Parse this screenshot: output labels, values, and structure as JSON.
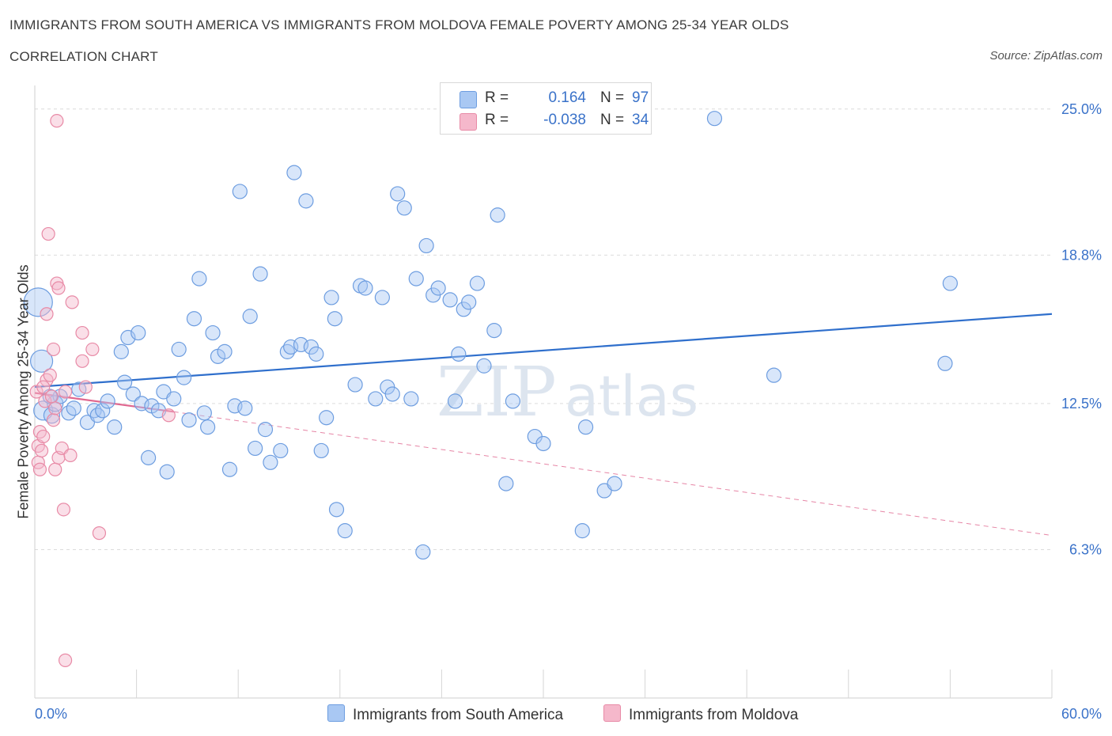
{
  "header": {
    "title": "IMMIGRANTS FROM SOUTH AMERICA VS IMMIGRANTS FROM MOLDOVA FEMALE POVERTY AMONG 25-34 YEAR OLDS",
    "subtitle": "CORRELATION CHART",
    "source": "Source: ZipAtlas.com"
  },
  "legend": {
    "rows": [
      {
        "r_label": "R =",
        "r_value": "0.164",
        "n_label": "N =",
        "n_value": "97",
        "color": "#a9c8f3"
      },
      {
        "r_label": "R =",
        "r_value": "-0.038",
        "n_label": "N =",
        "n_value": "34",
        "color": "#f5b8cb"
      }
    ]
  },
  "bottom_legend": {
    "south_america": "Immigrants from South America",
    "moldova": "Immigrants from Moldova"
  },
  "colors": {
    "blue_fill": "#a9c8f3",
    "blue_stroke": "#6d9de0",
    "blue_line": "#2f6fcc",
    "pink_fill": "#f5b8cb",
    "pink_stroke": "#e88aa6",
    "pink_line": "#e06890",
    "tick_text": "#3a72c9",
    "watermark": "#dde5ef"
  },
  "chart_data": {
    "type": "scatter",
    "title": "IMMIGRANTS FROM SOUTH AMERICA VS IMMIGRANTS FROM MOLDOVA FEMALE POVERTY AMONG 25-34 YEAR OLDS",
    "xlabel": "",
    "ylabel": "Female Poverty Among 25-34 Year Olds",
    "xlim": [
      0,
      60
    ],
    "ylim": [
      0,
      26
    ],
    "x_tick_labels": [
      "0.0%",
      "60.0%"
    ],
    "y_ticks": [
      6.3,
      12.5,
      18.8,
      25.0
    ],
    "y_tick_labels": [
      "6.3%",
      "12.5%",
      "18.8%",
      "25.0%"
    ],
    "grid": true,
    "watermark": "ZIPatlas",
    "series": [
      {
        "name": "Immigrants from South America",
        "color": "#a9c8f3",
        "trend": {
          "x": [
            0,
            60
          ],
          "y": [
            13.2,
            16.3
          ]
        },
        "points": [
          [
            0.2,
            16.8,
            18
          ],
          [
            0.4,
            14.3,
            14
          ],
          [
            0.5,
            12.2,
            12
          ],
          [
            1.0,
            12.0,
            10
          ],
          [
            1.2,
            12.5,
            10
          ],
          [
            1.5,
            12.8,
            9
          ],
          [
            2.0,
            12.1,
            9
          ],
          [
            2.3,
            12.3,
            9
          ],
          [
            2.6,
            13.1,
            9
          ],
          [
            3.1,
            11.7,
            9
          ],
          [
            3.5,
            12.2,
            9
          ],
          [
            3.7,
            12.0,
            9
          ],
          [
            4.0,
            12.2,
            9
          ],
          [
            4.3,
            12.6,
            9
          ],
          [
            4.7,
            11.5,
            9
          ],
          [
            5.1,
            14.7,
            9
          ],
          [
            5.3,
            13.4,
            9
          ],
          [
            5.5,
            15.3,
            9
          ],
          [
            5.8,
            12.9,
            9
          ],
          [
            6.1,
            15.5,
            9
          ],
          [
            6.3,
            12.5,
            9
          ],
          [
            6.7,
            10.2,
            9
          ],
          [
            6.9,
            12.4,
            9
          ],
          [
            7.3,
            12.2,
            9
          ],
          [
            7.6,
            13.0,
            9
          ],
          [
            7.8,
            9.6,
            9
          ],
          [
            8.2,
            12.7,
            9
          ],
          [
            8.5,
            14.8,
            9
          ],
          [
            8.8,
            13.6,
            9
          ],
          [
            9.1,
            11.8,
            9
          ],
          [
            9.4,
            16.1,
            9
          ],
          [
            9.7,
            17.8,
            9
          ],
          [
            10.0,
            12.1,
            9
          ],
          [
            10.2,
            11.5,
            9
          ],
          [
            10.5,
            15.5,
            9
          ],
          [
            10.8,
            14.5,
            9
          ],
          [
            11.2,
            14.7,
            9
          ],
          [
            11.5,
            9.7,
            9
          ],
          [
            11.8,
            12.4,
            9
          ],
          [
            12.1,
            21.5,
            9
          ],
          [
            12.4,
            12.3,
            9
          ],
          [
            12.7,
            16.2,
            9
          ],
          [
            13.0,
            10.6,
            9
          ],
          [
            13.3,
            18.0,
            9
          ],
          [
            13.6,
            11.4,
            9
          ],
          [
            13.9,
            10.0,
            9
          ],
          [
            14.5,
            10.5,
            9
          ],
          [
            14.9,
            14.7,
            9
          ],
          [
            15.1,
            14.9,
            9
          ],
          [
            15.3,
            22.3,
            9
          ],
          [
            15.7,
            15.0,
            9
          ],
          [
            16.0,
            21.1,
            9
          ],
          [
            16.3,
            14.9,
            9
          ],
          [
            16.6,
            14.6,
            9
          ],
          [
            16.9,
            10.5,
            9
          ],
          [
            17.2,
            11.9,
            9
          ],
          [
            17.5,
            17.0,
            9
          ],
          [
            17.8,
            8.0,
            9
          ],
          [
            17.7,
            16.1,
            9
          ],
          [
            18.3,
            7.1,
            9
          ],
          [
            18.9,
            13.3,
            9
          ],
          [
            19.2,
            17.5,
            9
          ],
          [
            19.5,
            17.4,
            9
          ],
          [
            20.1,
            12.7,
            9
          ],
          [
            20.5,
            17.0,
            9
          ],
          [
            20.8,
            13.2,
            9
          ],
          [
            21.1,
            12.9,
            9
          ],
          [
            21.4,
            21.4,
            9
          ],
          [
            21.8,
            20.8,
            9
          ],
          [
            22.2,
            12.7,
            9
          ],
          [
            22.5,
            17.8,
            9
          ],
          [
            22.9,
            6.2,
            9
          ],
          [
            23.1,
            19.2,
            9
          ],
          [
            23.5,
            17.1,
            9
          ],
          [
            23.8,
            17.4,
            9
          ],
          [
            24.5,
            16.9,
            9
          ],
          [
            24.8,
            12.6,
            9
          ],
          [
            25.0,
            14.6,
            9
          ],
          [
            25.3,
            16.5,
            9
          ],
          [
            25.6,
            16.8,
            9
          ],
          [
            26.1,
            17.6,
            9
          ],
          [
            26.5,
            14.1,
            9
          ],
          [
            27.1,
            15.6,
            9
          ],
          [
            27.3,
            20.5,
            9
          ],
          [
            27.8,
            9.1,
            9
          ],
          [
            28.2,
            12.6,
            9
          ],
          [
            29.5,
            11.1,
            9
          ],
          [
            30.0,
            10.8,
            9
          ],
          [
            32.3,
            7.1,
            9
          ],
          [
            32.5,
            11.5,
            9
          ],
          [
            33.6,
            8.8,
            9
          ],
          [
            34.2,
            9.1,
            9
          ],
          [
            40.1,
            24.6,
            9
          ],
          [
            43.6,
            13.7,
            9
          ],
          [
            53.7,
            14.2,
            9
          ],
          [
            54.0,
            17.6,
            9
          ],
          [
            0.9,
            12.8,
            9
          ]
        ]
      },
      {
        "name": "Immigrants from Moldova",
        "color": "#f5b8cb",
        "trend": {
          "x": [
            0,
            8.2
          ],
          "y": [
            12.95,
            12.15
          ]
        },
        "trend_extended": {
          "x": [
            8.2,
            60
          ],
          "y": [
            12.15,
            6.9
          ]
        },
        "points": [
          [
            0.1,
            13.0,
            8
          ],
          [
            0.2,
            10.7,
            8
          ],
          [
            0.2,
            10.0,
            8
          ],
          [
            0.3,
            9.7,
            8
          ],
          [
            0.3,
            11.3,
            8
          ],
          [
            0.4,
            10.5,
            8
          ],
          [
            0.5,
            11.1,
            8
          ],
          [
            0.6,
            12.6,
            8
          ],
          [
            0.7,
            13.5,
            8
          ],
          [
            0.7,
            16.3,
            8
          ],
          [
            0.8,
            19.7,
            8
          ],
          [
            0.9,
            13.7,
            8
          ],
          [
            1.0,
            12.8,
            8
          ],
          [
            1.1,
            11.8,
            8
          ],
          [
            1.1,
            14.8,
            8
          ],
          [
            1.2,
            12.3,
            8
          ],
          [
            1.2,
            9.7,
            8
          ],
          [
            1.3,
            24.5,
            8
          ],
          [
            1.3,
            17.6,
            8
          ],
          [
            1.4,
            10.2,
            8
          ],
          [
            1.4,
            17.4,
            8
          ],
          [
            1.6,
            10.6,
            8
          ],
          [
            1.7,
            8.0,
            8
          ],
          [
            1.8,
            13.0,
            8
          ],
          [
            1.8,
            1.6,
            8
          ],
          [
            2.1,
            10.3,
            8
          ],
          [
            2.2,
            16.8,
            8
          ],
          [
            2.8,
            15.5,
            8
          ],
          [
            2.8,
            14.3,
            8
          ],
          [
            3.0,
            13.2,
            8
          ],
          [
            3.4,
            14.8,
            8
          ],
          [
            3.8,
            7.0,
            8
          ],
          [
            7.9,
            12.0,
            8
          ],
          [
            0.5,
            13.2,
            8
          ]
        ]
      }
    ]
  }
}
